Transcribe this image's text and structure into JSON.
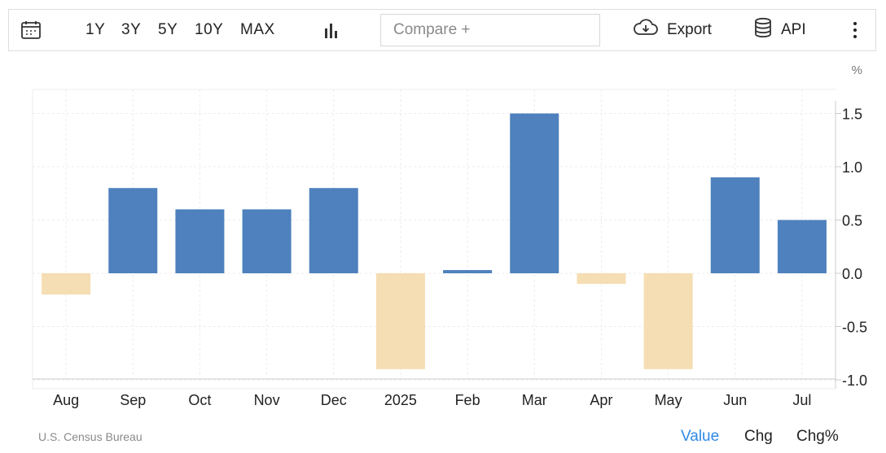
{
  "toolbar": {
    "calendar_icon": "calendar-icon",
    "ranges": [
      "1Y",
      "3Y",
      "5Y",
      "10Y",
      "MAX"
    ],
    "chart_type_icon": "bar-chart-icon",
    "compare_placeholder": "Compare +",
    "export_label": "Export",
    "export_icon": "cloud-download-icon",
    "api_label": "API",
    "api_icon": "database-icon",
    "more_icon": "more-vertical-icon"
  },
  "chart_data": {
    "type": "bar",
    "unit_label": "%",
    "categories": [
      "Aug",
      "Sep",
      "Oct",
      "Nov",
      "Dec",
      "2025",
      "Feb",
      "Mar",
      "Apr",
      "May",
      "Jun",
      "Jul"
    ],
    "values": [
      -0.2,
      0.8,
      0.6,
      0.6,
      0.8,
      -0.9,
      0.03,
      1.5,
      -0.1,
      -0.9,
      0.9,
      0.5
    ],
    "ylim": [
      -1.0,
      1.5
    ],
    "yticks": [
      1.5,
      1.0,
      0.5,
      0.0,
      -0.5,
      -1.0
    ],
    "ytick_labels": [
      "1.5",
      "1.0",
      "0.5",
      "0.0",
      "-0.5",
      "-1.0"
    ],
    "y_axis_position": "right",
    "grid": true,
    "colors": {
      "positive": "#4e81bd",
      "negative": "#f5deb3",
      "grid": "#ececec",
      "axis": "#cccccc"
    }
  },
  "footer": {
    "source": "U.S. Census Bureau",
    "tabs": [
      {
        "label": "Value",
        "color": "#2e8ae6"
      },
      {
        "label": "Chg",
        "color": "#222222"
      },
      {
        "label": "Chg%",
        "color": "#222222"
      }
    ]
  }
}
